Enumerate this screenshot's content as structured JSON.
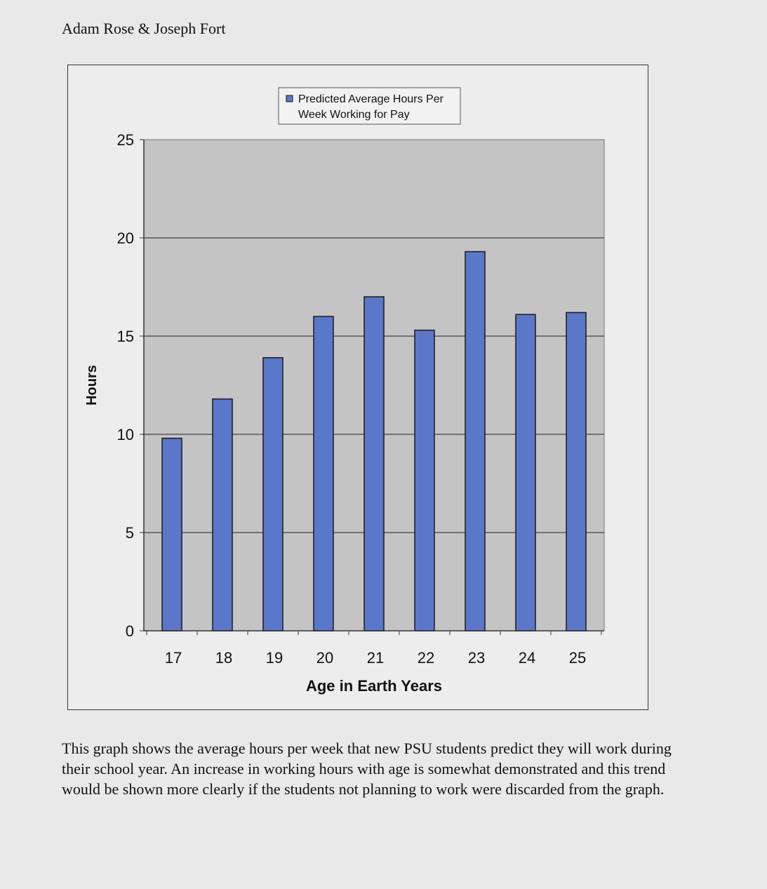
{
  "document": {
    "authors": "Adam Rose & Joseph Fort",
    "caption": "This graph shows the average hours per week that new PSU students predict they will work during their school year.  An increase in working hours with age is somewhat demonstrated and this trend would be shown more clearly if the students not planning to work were discarded from the graph."
  },
  "chart_data": {
    "type": "bar",
    "categories": [
      "17",
      "18",
      "19",
      "20",
      "21",
      "22",
      "23",
      "24",
      "25"
    ],
    "series": [
      {
        "name": "Predicted Average Hours Per Week Working for Pay",
        "values": [
          9.8,
          11.8,
          13.9,
          16.0,
          17.0,
          15.3,
          19.3,
          16.1,
          16.2
        ]
      }
    ],
    "title": "",
    "xlabel": "Age in Earth Years",
    "ylabel": "Hours",
    "ylim": [
      0,
      25
    ],
    "yticks": [
      "0",
      "5",
      "10",
      "15",
      "20",
      "25"
    ],
    "legend": {
      "placement": "top-right",
      "lines": [
        "Predicted Average Hours Per",
        "Week Working for Pay"
      ]
    },
    "grid": true,
    "colors": {
      "bar_fill": "#5b77c9",
      "bar_stroke": "#1a1a1a",
      "plot_bg": "#c4c4c4",
      "gridline": "#222222"
    }
  }
}
